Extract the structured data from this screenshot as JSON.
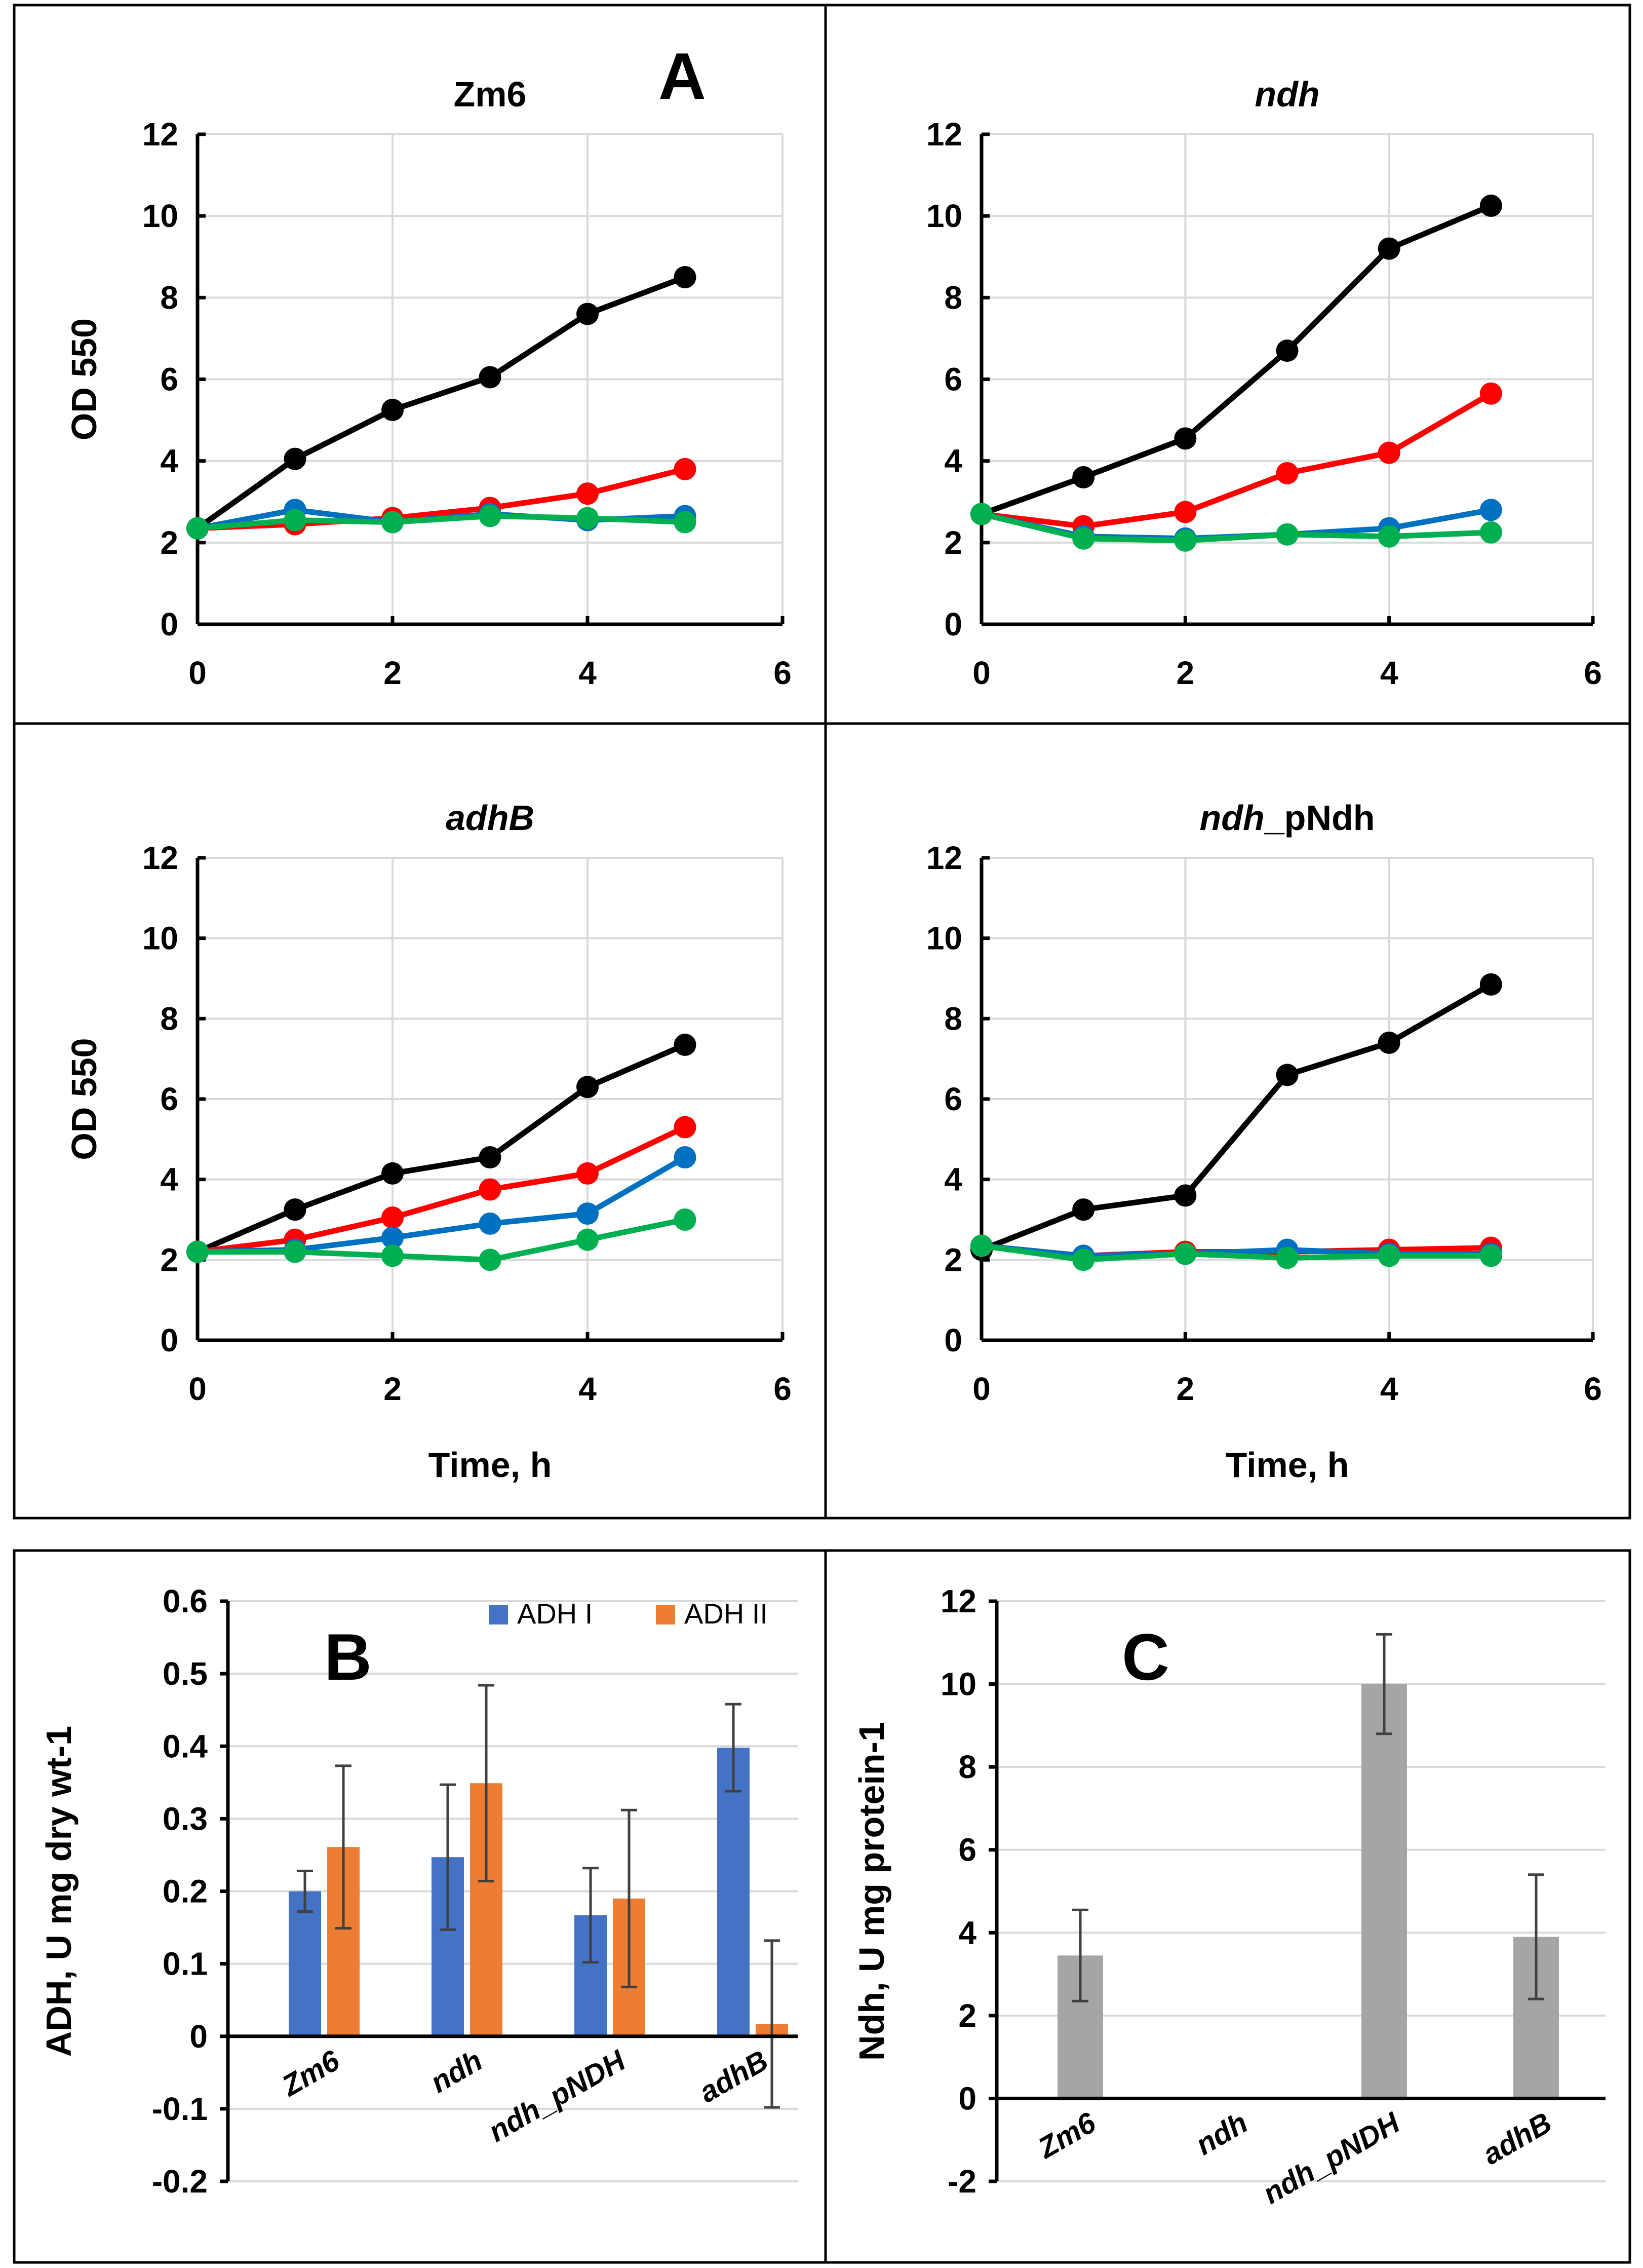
{
  "panel_labels": {
    "a": "A",
    "b": "B",
    "c": "C"
  },
  "chart_data": [
    {
      "type": "line",
      "title": "Zm6",
      "title_italic": false,
      "ylabel": "OD 550",
      "xlabel": "",
      "xlim": [
        0,
        6
      ],
      "ylim": [
        0,
        12
      ],
      "xticks": [
        0,
        2,
        4,
        6
      ],
      "yticks": [
        0,
        2,
        4,
        6,
        8,
        10,
        12
      ],
      "x": [
        0,
        1,
        2,
        3,
        4,
        5
      ],
      "series": [
        {
          "name": "black",
          "color": "#000000",
          "values": [
            2.35,
            4.05,
            5.25,
            6.05,
            7.6,
            8.5
          ]
        },
        {
          "name": "red",
          "color": "#ff0000",
          "values": [
            2.35,
            2.45,
            2.6,
            2.85,
            3.2,
            3.8
          ]
        },
        {
          "name": "blue",
          "color": "#0070c0",
          "values": [
            2.35,
            2.8,
            2.5,
            2.7,
            2.55,
            2.65
          ]
        },
        {
          "name": "green",
          "color": "#00b050",
          "values": [
            2.35,
            2.55,
            2.5,
            2.65,
            2.6,
            2.5
          ]
        }
      ]
    },
    {
      "type": "line",
      "title": "ndh",
      "title_italic": true,
      "ylabel": "",
      "xlabel": "",
      "xlim": [
        0,
        6
      ],
      "ylim": [
        0,
        12
      ],
      "xticks": [
        0,
        2,
        4,
        6
      ],
      "yticks": [
        0,
        2,
        4,
        6,
        8,
        10,
        12
      ],
      "x": [
        0,
        1,
        2,
        3,
        4,
        5
      ],
      "series": [
        {
          "name": "black",
          "color": "#000000",
          "values": [
            2.7,
            3.6,
            4.55,
            6.7,
            9.2,
            10.25
          ]
        },
        {
          "name": "red",
          "color": "#ff0000",
          "values": [
            2.7,
            2.4,
            2.75,
            3.7,
            4.2,
            5.65
          ]
        },
        {
          "name": "blue",
          "color": "#0070c0",
          "values": [
            2.7,
            2.15,
            2.1,
            2.2,
            2.35,
            2.8
          ]
        },
        {
          "name": "green",
          "color": "#00b050",
          "values": [
            2.7,
            2.1,
            2.05,
            2.2,
            2.15,
            2.25
          ]
        }
      ]
    },
    {
      "type": "line",
      "title": "adhB",
      "title_italic": true,
      "ylabel": "OD 550",
      "xlabel": "Time, h",
      "xlim": [
        0,
        6
      ],
      "ylim": [
        0,
        12
      ],
      "xticks": [
        0,
        2,
        4,
        6
      ],
      "yticks": [
        0,
        2,
        4,
        6,
        8,
        10,
        12
      ],
      "x": [
        0,
        1,
        2,
        3,
        4,
        5
      ],
      "series": [
        {
          "name": "black",
          "color": "#000000",
          "values": [
            2.2,
            3.25,
            4.15,
            4.55,
            6.3,
            7.35
          ]
        },
        {
          "name": "red",
          "color": "#ff0000",
          "values": [
            2.2,
            2.5,
            3.05,
            3.75,
            4.15,
            5.3
          ]
        },
        {
          "name": "blue",
          "color": "#0070c0",
          "values": [
            2.2,
            2.25,
            2.55,
            2.9,
            3.15,
            4.55
          ]
        },
        {
          "name": "green",
          "color": "#00b050",
          "values": [
            2.2,
            2.2,
            2.1,
            2.0,
            2.5,
            3.0
          ]
        }
      ]
    },
    {
      "type": "line",
      "title_italic_part": "ndh",
      "title_rest": "_pNdh",
      "ylabel": "",
      "xlabel": "Time, h",
      "xlim": [
        0,
        6
      ],
      "ylim": [
        0,
        12
      ],
      "xticks": [
        0,
        2,
        4,
        6
      ],
      "yticks": [
        0,
        2,
        4,
        6,
        8,
        10,
        12
      ],
      "x": [
        0,
        1,
        2,
        3,
        4,
        5
      ],
      "series": [
        {
          "name": "black",
          "color": "#000000",
          "values": [
            2.25,
            3.25,
            3.6,
            6.6,
            7.4,
            8.85
          ]
        },
        {
          "name": "red",
          "color": "#ff0000",
          "values": [
            2.35,
            2.1,
            2.2,
            2.2,
            2.25,
            2.3
          ]
        },
        {
          "name": "blue",
          "color": "#0070c0",
          "values": [
            2.35,
            2.1,
            2.15,
            2.25,
            2.15,
            2.15
          ]
        },
        {
          "name": "green",
          "color": "#00b050",
          "values": [
            2.35,
            2.0,
            2.15,
            2.05,
            2.1,
            2.1
          ]
        }
      ]
    },
    {
      "type": "bar",
      "ylabel": "ADH, U mg dry wt-1",
      "ylim": [
        -0.2,
        0.6
      ],
      "yticks": [
        "-0.2",
        "-0.1",
        "0",
        "0.1",
        "0.2",
        "0.3",
        "0.4",
        "0.5",
        "0.6"
      ],
      "categories": [
        "Zm6",
        "ndh",
        "ndh_pNDH",
        "adhB"
      ],
      "legend_position": "top-right",
      "series": [
        {
          "name": "ADH I",
          "color": "#4472c4",
          "values": [
            0.2,
            0.247,
            0.167,
            0.398
          ],
          "errors": [
            0.028,
            0.1,
            0.065,
            0.06
          ]
        },
        {
          "name": "ADH II",
          "color": "#ed7d31",
          "values": [
            0.261,
            0.349,
            0.19,
            0.017
          ],
          "errors": [
            0.112,
            0.135,
            0.122,
            0.115
          ]
        }
      ]
    },
    {
      "type": "bar",
      "ylabel": "Ndh, U mg protein-1",
      "ylim": [
        -2,
        12
      ],
      "yticks": [
        "-2",
        "0",
        "2",
        "4",
        "6",
        "8",
        "10",
        "12"
      ],
      "categories": [
        "Zm6",
        "ndh",
        "ndh_pNDH",
        "adhB"
      ],
      "series": [
        {
          "name": "Ndh",
          "color": "#a5a5a5",
          "values": [
            3.45,
            0,
            10.0,
            3.9
          ],
          "errors": [
            1.1,
            0,
            1.2,
            1.5
          ]
        }
      ]
    }
  ]
}
